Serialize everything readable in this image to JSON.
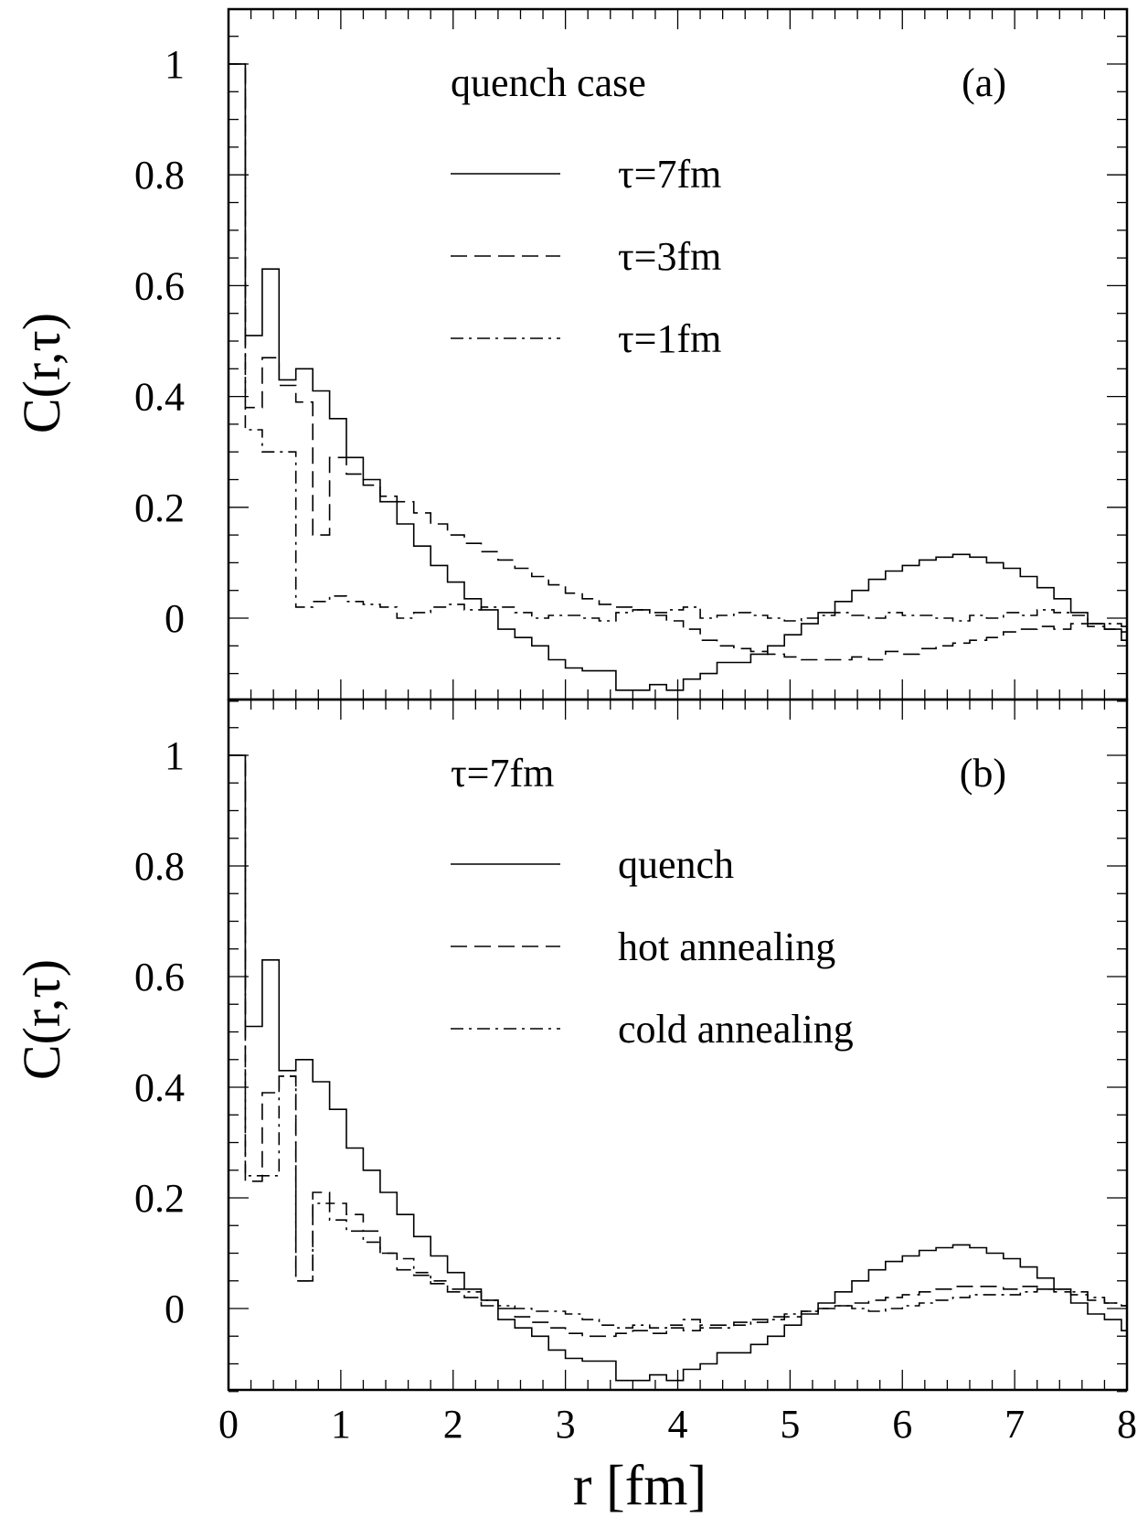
{
  "figure": {
    "xlabel": "r [fm]",
    "ylabel": "C(r,τ)"
  },
  "chart_data": [
    {
      "type": "line",
      "panel_label": "(a)",
      "legend_title": "quench case",
      "xlim": [
        0,
        8
      ],
      "ylim": [
        -0.15,
        1.1
      ],
      "yticks": [
        0,
        0.2,
        0.4,
        0.6,
        0.8,
        1
      ],
      "ytick_labels": [
        "0",
        "0.2",
        "0.4",
        "0.6",
        "0.8",
        "1"
      ],
      "xticks": [
        0,
        1,
        2,
        3,
        4,
        5,
        6,
        7,
        8
      ],
      "xtick_labels": [
        "0",
        "1",
        "2",
        "3",
        "4",
        "5",
        "6",
        "7",
        "8"
      ],
      "step_width": 0.15,
      "series": [
        {
          "name": "τ=7fm",
          "style": "solid",
          "values": [
            1.0,
            0.51,
            0.63,
            0.43,
            0.45,
            0.41,
            0.36,
            0.29,
            0.25,
            0.21,
            0.17,
            0.13,
            0.095,
            0.065,
            0.035,
            0.015,
            -0.02,
            -0.035,
            -0.05,
            -0.075,
            -0.09,
            -0.095,
            -0.095,
            -0.13,
            -0.13,
            -0.12,
            -0.13,
            -0.11,
            -0.1,
            -0.08,
            -0.08,
            -0.065,
            -0.05,
            -0.03,
            -0.01,
            0.01,
            0.03,
            0.05,
            0.07,
            0.085,
            0.095,
            0.105,
            0.11,
            0.115,
            0.11,
            0.1,
            0.09,
            0.075,
            0.055,
            0.035,
            0.01,
            -0.01,
            -0.02,
            -0.04,
            -0.05
          ]
        },
        {
          "name": "τ=3fm",
          "style": "dashed",
          "values": [
            1.0,
            0.38,
            0.47,
            0.42,
            0.39,
            0.15,
            0.29,
            0.26,
            0.24,
            0.22,
            0.21,
            0.19,
            0.17,
            0.15,
            0.135,
            0.12,
            0.105,
            0.09,
            0.075,
            0.06,
            0.045,
            0.035,
            0.025,
            0.02,
            0.015,
            0.005,
            -0.005,
            -0.02,
            -0.04,
            -0.05,
            -0.055,
            -0.06,
            -0.065,
            -0.07,
            -0.075,
            -0.075,
            -0.075,
            -0.07,
            -0.075,
            -0.06,
            -0.065,
            -0.055,
            -0.05,
            -0.045,
            -0.04,
            -0.035,
            -0.025,
            -0.02,
            -0.015,
            -0.02,
            -0.01,
            -0.015,
            -0.02,
            -0.025,
            -0.03
          ]
        },
        {
          "name": "τ=1fm",
          "style": "dashdot",
          "values": [
            1.0,
            0.34,
            0.3,
            0.3,
            0.02,
            0.03,
            0.04,
            0.03,
            0.025,
            0.02,
            0.0,
            0.01,
            0.02,
            0.025,
            0.015,
            0.02,
            0.02,
            0.01,
            0.0,
            0.005,
            0.005,
            0.0,
            -0.005,
            0.01,
            0.015,
            0.01,
            0.015,
            0.02,
            0.0,
            0.005,
            0.01,
            0.005,
            0.0,
            -0.005,
            0.0,
            0.005,
            0.01,
            0.005,
            0.0,
            0.01,
            0.005,
            0.005,
            0.0,
            -0.005,
            0.005,
            0.0,
            0.01,
            0.005,
            0.015,
            0.01,
            0.005,
            -0.01,
            -0.01,
            -0.015,
            -0.01
          ]
        }
      ]
    },
    {
      "type": "line",
      "panel_label": "(b)",
      "legend_title": "τ=7fm",
      "xlim": [
        0,
        8
      ],
      "ylim": [
        -0.15,
        1.1
      ],
      "yticks": [
        0,
        0.2,
        0.4,
        0.6,
        0.8,
        1
      ],
      "ytick_labels": [
        "0",
        "0.2",
        "0.4",
        "0.6",
        "0.8",
        "1"
      ],
      "xticks": [
        0,
        1,
        2,
        3,
        4,
        5,
        6,
        7,
        8
      ],
      "xtick_labels": [
        "0",
        "1",
        "2",
        "3",
        "4",
        "5",
        "6",
        "7",
        "8"
      ],
      "step_width": 0.15,
      "series": [
        {
          "name": "quench",
          "style": "solid",
          "values": [
            1.0,
            0.51,
            0.63,
            0.43,
            0.45,
            0.41,
            0.36,
            0.29,
            0.25,
            0.21,
            0.17,
            0.13,
            0.095,
            0.065,
            0.035,
            0.015,
            -0.02,
            -0.035,
            -0.05,
            -0.075,
            -0.09,
            -0.095,
            -0.095,
            -0.13,
            -0.13,
            -0.12,
            -0.13,
            -0.11,
            -0.1,
            -0.08,
            -0.08,
            -0.065,
            -0.05,
            -0.03,
            -0.01,
            0.01,
            0.03,
            0.05,
            0.07,
            0.085,
            0.095,
            0.105,
            0.11,
            0.115,
            0.11,
            0.1,
            0.09,
            0.075,
            0.055,
            0.035,
            0.01,
            -0.01,
            -0.02,
            -0.04,
            -0.05
          ]
        },
        {
          "name": "hot annealing",
          "style": "dashed",
          "values": [
            1.0,
            0.23,
            0.39,
            0.42,
            0.05,
            0.21,
            0.19,
            0.17,
            0.14,
            0.1,
            0.07,
            0.06,
            0.045,
            0.03,
            0.02,
            0.005,
            0.0,
            -0.015,
            -0.025,
            -0.035,
            -0.045,
            -0.05,
            -0.05,
            -0.045,
            -0.04,
            -0.045,
            -0.035,
            -0.04,
            -0.03,
            -0.03,
            -0.025,
            -0.02,
            -0.015,
            -0.015,
            -0.005,
            0.0,
            0.005,
            0.01,
            0.015,
            0.02,
            0.025,
            0.03,
            0.035,
            0.04,
            0.04,
            0.04,
            0.035,
            0.04,
            0.035,
            0.03,
            0.025,
            0.015,
            0.01,
            0.005,
            0.0
          ]
        },
        {
          "name": "cold annealing",
          "style": "dashdot",
          "values": [
            1.0,
            0.24,
            0.24,
            0.42,
            0.05,
            0.19,
            0.16,
            0.14,
            0.12,
            0.1,
            0.09,
            0.065,
            0.05,
            0.035,
            0.03,
            0.015,
            0.005,
            0.0,
            -0.005,
            -0.005,
            -0.01,
            -0.02,
            -0.03,
            -0.035,
            -0.03,
            -0.035,
            -0.03,
            -0.02,
            -0.035,
            -0.035,
            -0.03,
            -0.025,
            -0.02,
            -0.01,
            -0.005,
            0.0,
            0.005,
            0.0,
            -0.005,
            0.0,
            0.005,
            0.01,
            0.015,
            0.02,
            0.025,
            0.025,
            0.025,
            0.03,
            0.035,
            0.035,
            0.03,
            0.02,
            0.01,
            0.005,
            0.0
          ]
        }
      ]
    }
  ]
}
